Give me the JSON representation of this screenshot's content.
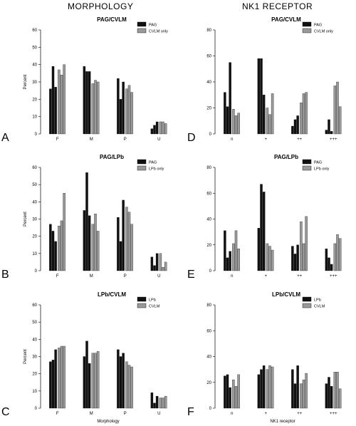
{
  "headings": {
    "left": "MORPHOLOGY",
    "right": "NK1 RECEPTOR"
  },
  "colors": {
    "dark": "#111111",
    "light": "#9a9a9a",
    "axis": "#000000"
  },
  "chart_data": [
    {
      "letter": "A",
      "type": "bar",
      "title": "PAG/CVLM",
      "ylabel": "Percent",
      "xlabel": "",
      "ylim": [
        0,
        60
      ],
      "yticks": [
        0,
        10,
        20,
        30,
        40,
        50,
        60
      ],
      "categories": [
        "F",
        "M",
        "P",
        "U"
      ],
      "series": [
        {
          "name": "PAG",
          "color": "dark",
          "values": [
            [
              26,
              39,
              27
            ],
            [
              39,
              36,
              36
            ],
            [
              32,
              20,
              30
            ],
            [
              3,
              5,
              7
            ]
          ]
        },
        {
          "name": "CVLM only",
          "color": "light",
          "values": [
            [
              37,
              34,
              40
            ],
            [
              29,
              31,
              30
            ],
            [
              26,
              28,
              24
            ],
            [
              7,
              7,
              6
            ]
          ]
        }
      ]
    },
    {
      "letter": "B",
      "type": "bar",
      "title": "PAG/LPb",
      "ylabel": "Percent",
      "xlabel": "",
      "ylim": [
        0,
        60
      ],
      "yticks": [
        0,
        10,
        20,
        30,
        40,
        50,
        60
      ],
      "categories": [
        "F",
        "M",
        "P",
        "U"
      ],
      "series": [
        {
          "name": "PAG",
          "color": "dark",
          "values": [
            [
              27,
              23,
              17
            ],
            [
              35,
              57,
              32
            ],
            [
              31,
              17,
              41
            ],
            [
              8,
              3,
              10
            ]
          ]
        },
        {
          "name": "LPb only",
          "color": "light",
          "values": [
            [
              26,
              29,
              45
            ],
            [
              27,
              33,
              23
            ],
            [
              37,
              34,
              27
            ],
            [
              10,
              2,
              5
            ]
          ]
        }
      ]
    },
    {
      "letter": "C",
      "type": "bar",
      "title": "LPb/CVLM",
      "ylabel": "Percent",
      "xlabel": "Morphology",
      "ylim": [
        0,
        60
      ],
      "yticks": [
        0,
        10,
        20,
        30,
        40,
        50,
        60
      ],
      "categories": [
        "F",
        "M",
        "P",
        "U"
      ],
      "series": [
        {
          "name": "LPb",
          "color": "dark",
          "values": [
            [
              27,
              28,
              34
            ],
            [
              30,
              39,
              26
            ],
            [
              34,
              30,
              32
            ],
            [
              9,
              3,
              7
            ]
          ]
        },
        {
          "name": "CVLM",
          "color": "light",
          "values": [
            [
              35,
              36,
              36
            ],
            [
              32,
              32,
              33
            ],
            [
              27,
              25,
              24
            ],
            [
              6,
              6,
              7
            ]
          ]
        }
      ]
    },
    {
      "letter": "D",
      "type": "bar",
      "title": "PAG/CVLM",
      "ylabel": "",
      "xlabel": "",
      "ylim": [
        0,
        80
      ],
      "yticks": [
        0,
        20,
        40,
        60,
        80
      ],
      "categories": [
        "n",
        "+",
        "++",
        "+++"
      ],
      "series": [
        {
          "name": "PAG",
          "color": "dark",
          "values": [
            [
              32,
              21,
              55
            ],
            [
              58,
              58,
              30
            ],
            [
              6,
              11,
              14
            ],
            [
              3,
              11,
              2
            ]
          ]
        },
        {
          "name": "CVLM only",
          "color": "light",
          "values": [
            [
              19,
              14,
              16
            ],
            [
              20,
              15,
              31
            ],
            [
              24,
              31,
              32
            ],
            [
              37,
              40,
              21
            ]
          ]
        }
      ]
    },
    {
      "letter": "E",
      "type": "bar",
      "title": "PAG/LPb",
      "ylabel": "",
      "xlabel": "",
      "ylim": [
        0,
        80
      ],
      "yticks": [
        0,
        20,
        40,
        60,
        80
      ],
      "categories": [
        "n",
        "+",
        "++",
        "+++"
      ],
      "series": [
        {
          "name": "PAG",
          "color": "dark",
          "values": [
            [
              31,
              10,
              15
            ],
            [
              33,
              67,
              61
            ],
            [
              19,
              13,
              20
            ],
            [
              17,
              10,
              5
            ]
          ]
        },
        {
          "name": "LPb only",
          "color": "light",
          "values": [
            [
              21,
              31,
              17
            ],
            [
              21,
              19,
              16
            ],
            [
              38,
              21,
              42
            ],
            [
              21,
              28,
              25
            ]
          ]
        }
      ]
    },
    {
      "letter": "F",
      "type": "bar",
      "title": "LPb/CVLM",
      "ylabel": "",
      "xlabel": "NK1 receptor",
      "ylim": [
        0,
        80
      ],
      "yticks": [
        0,
        20,
        40,
        60,
        80
      ],
      "categories": [
        "n",
        "+",
        "++",
        "+++"
      ],
      "series": [
        {
          "name": "LPb",
          "color": "dark",
          "values": [
            [
              25,
              26,
              16
            ],
            [
              26,
              30,
              33
            ],
            [
              30,
              19,
              33
            ],
            [
              19,
              24,
              17
            ]
          ]
        },
        {
          "name": "CVLM",
          "color": "light",
          "values": [
            [
              22,
              17,
              26
            ],
            [
              30,
              33,
              32
            ],
            [
              19,
              22,
              27
            ],
            [
              28,
              28,
              15
            ]
          ]
        }
      ]
    }
  ]
}
